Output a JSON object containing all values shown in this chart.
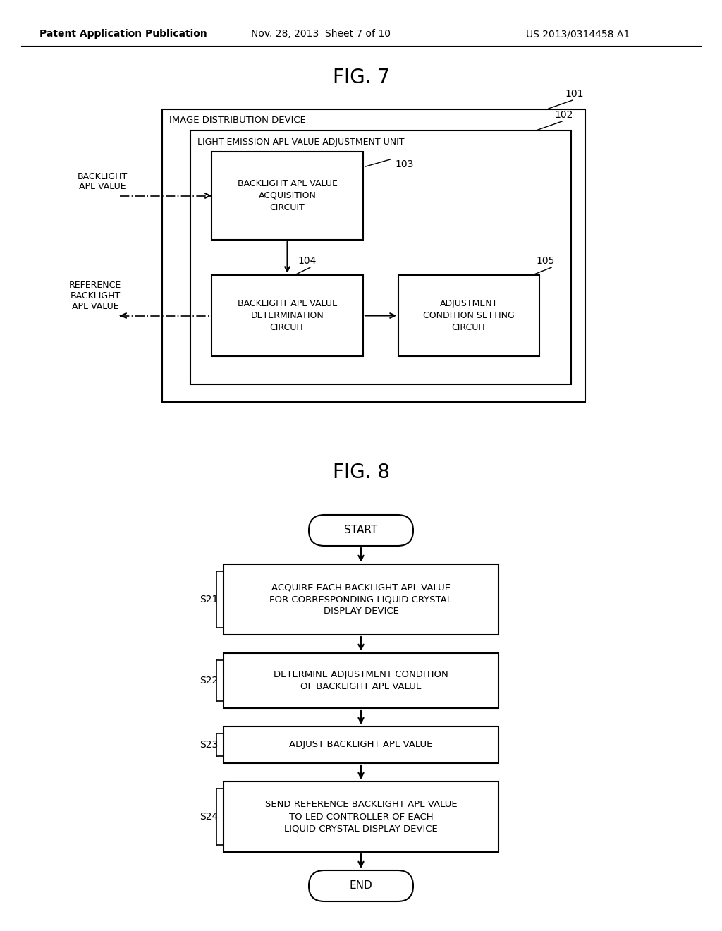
{
  "header_left": "Patent Application Publication",
  "header_mid": "Nov. 28, 2013  Sheet 7 of 10",
  "header_right": "US 2013/0314458 A1",
  "fig7_title": "FIG. 7",
  "fig8_title": "FIG. 8",
  "bg_color": "#ffffff",
  "text_color": "#000000",
  "fig7": {
    "outer_label": "IMAGE DISTRIBUTION DEVICE",
    "outer_num": "101",
    "inner_label": "LIGHT EMISSION APL VALUE ADJUSTMENT UNIT",
    "inner_num": "102",
    "box103_label": "BACKLIGHT APL VALUE\nACQUISITION\nCIRCUIT",
    "box103_num": "103",
    "box104_label": "BACKLIGHT APL VALUE\nDETERMINATION\nCIRCUIT",
    "box104_num": "104",
    "box105_label": "ADJUSTMENT\nCONDITION SETTING\nCIRCUIT",
    "box105_num": "105",
    "label_backlight": "BACKLIGHT\nAPL VALUE",
    "label_reference": "REFERENCE\nBACKLIGHT\nAPL VALUE"
  },
  "fig8": {
    "start_label": "START",
    "end_label": "END",
    "s21_label": "S21",
    "s22_label": "S22",
    "s23_label": "S23",
    "s24_label": "S24",
    "box21_text": "ACQUIRE EACH BACKLIGHT APL VALUE\nFOR CORRESPONDING LIQUID CRYSTAL\nDISPLAY DEVICE",
    "box22_text": "DETERMINE ADJUSTMENT CONDITION\nOF BACKLIGHT APL VALUE",
    "box23_text": "ADJUST BACKLIGHT APL VALUE",
    "box24_text": "SEND REFERENCE BACKLIGHT APL VALUE\nTO LED CONTROLLER OF EACH\nLIQUID CRYSTAL DISPLAY DEVICE"
  }
}
